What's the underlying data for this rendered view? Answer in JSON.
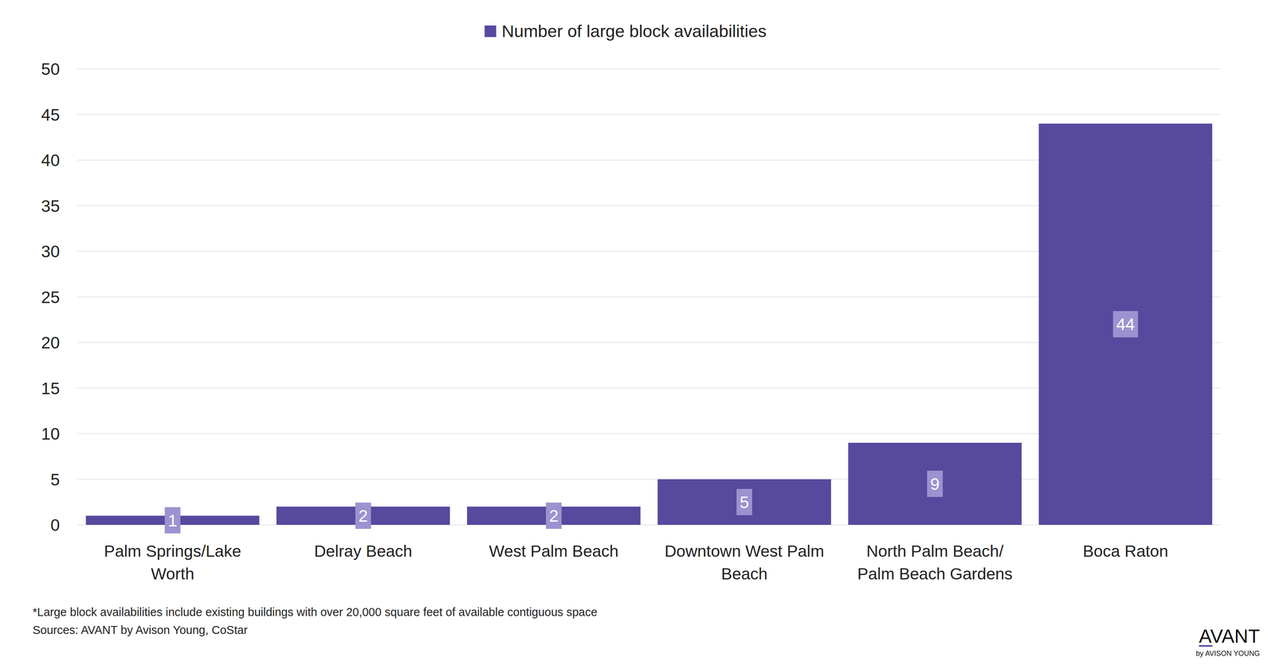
{
  "chart_data": {
    "type": "bar",
    "categories": [
      "Palm Springs/Lake Worth",
      "Delray Beach",
      "West Palm Beach",
      "Downtown West Palm Beach",
      "North Palm Beach/ Palm Beach Gardens",
      "Boca Raton"
    ],
    "series": [
      {
        "name": "Number of large block availabilities",
        "color": "#56499e",
        "values": [
          1,
          2,
          2,
          5,
          9,
          44
        ]
      }
    ],
    "ylim": [
      0,
      50
    ],
    "yticks": [
      0,
      5,
      10,
      15,
      20,
      25,
      30,
      35,
      40,
      45,
      50
    ],
    "grid": true,
    "legend": "top",
    "data_labels": true,
    "annotations": [
      "*Large block availabilities include existing buildings with over 20,000 square feet of available contiguous space",
      "Sources: AVANT by Avison Young, CoStar",
      "AVANT",
      "by AVISON YOUNG"
    ]
  }
}
